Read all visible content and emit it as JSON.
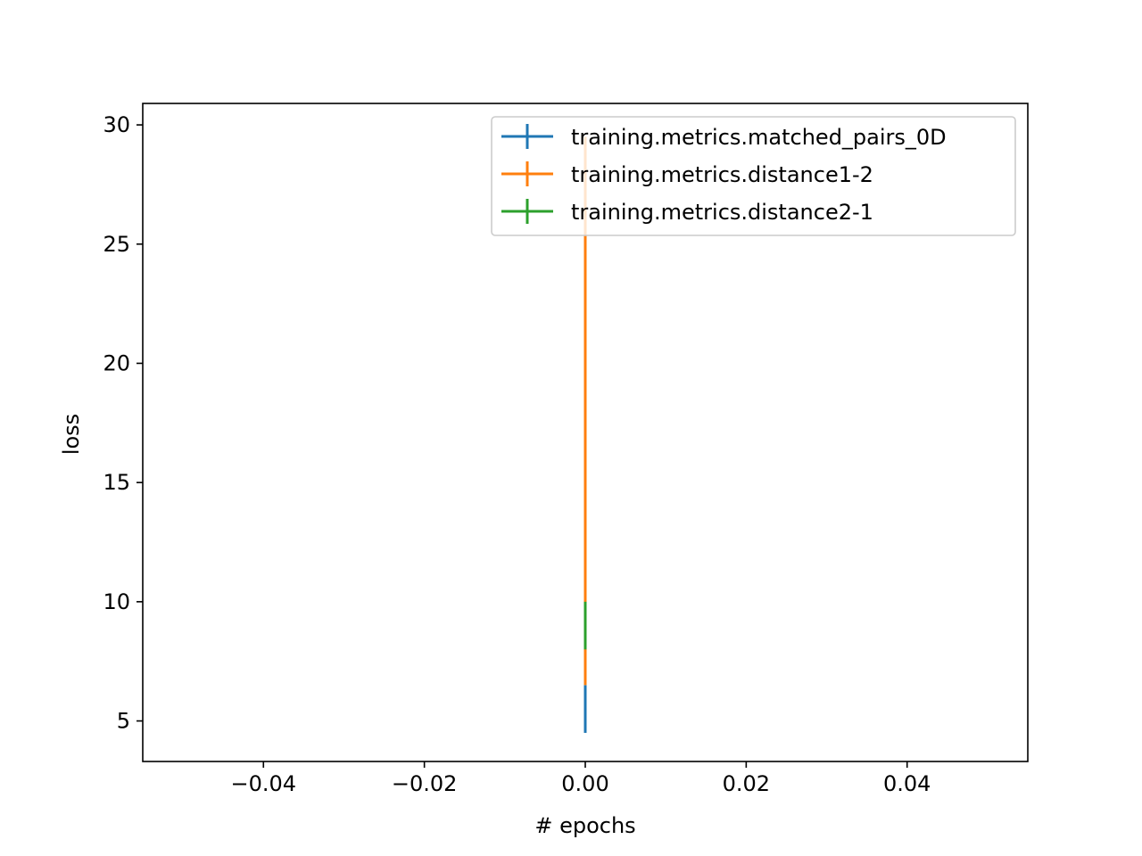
{
  "chart_data": {
    "type": "line",
    "title": "",
    "xlabel": "# epochs",
    "ylabel": "loss",
    "xlim": [
      -0.055,
      0.055
    ],
    "ylim": [
      3.3,
      30.9
    ],
    "xticks": [
      -0.04,
      -0.02,
      0.0,
      0.02,
      0.04
    ],
    "xtick_labels": [
      "−0.04",
      "−0.02",
      "0.00",
      "0.02",
      "0.04"
    ],
    "yticks": [
      5,
      10,
      15,
      20,
      25,
      30
    ],
    "ytick_labels": [
      "5",
      "10",
      "15",
      "20",
      "25",
      "30"
    ],
    "grid": false,
    "legend_position": "upper right",
    "series": [
      {
        "name": "training.metrics.matched_pairs_0D",
        "color": "#1f77b4",
        "x": [
          0.0
        ],
        "y": [
          5.5
        ],
        "yerr": [
          1.0
        ]
      },
      {
        "name": "training.metrics.distance1-2",
        "color": "#ff7f0e",
        "x": [
          0.0
        ],
        "y": [
          18.0
        ],
        "yerr": [
          11.5
        ]
      },
      {
        "name": "training.metrics.distance2-1",
        "color": "#2ca02c",
        "x": [
          0.0
        ],
        "y": [
          9.0
        ],
        "yerr": [
          1.0
        ]
      }
    ]
  }
}
